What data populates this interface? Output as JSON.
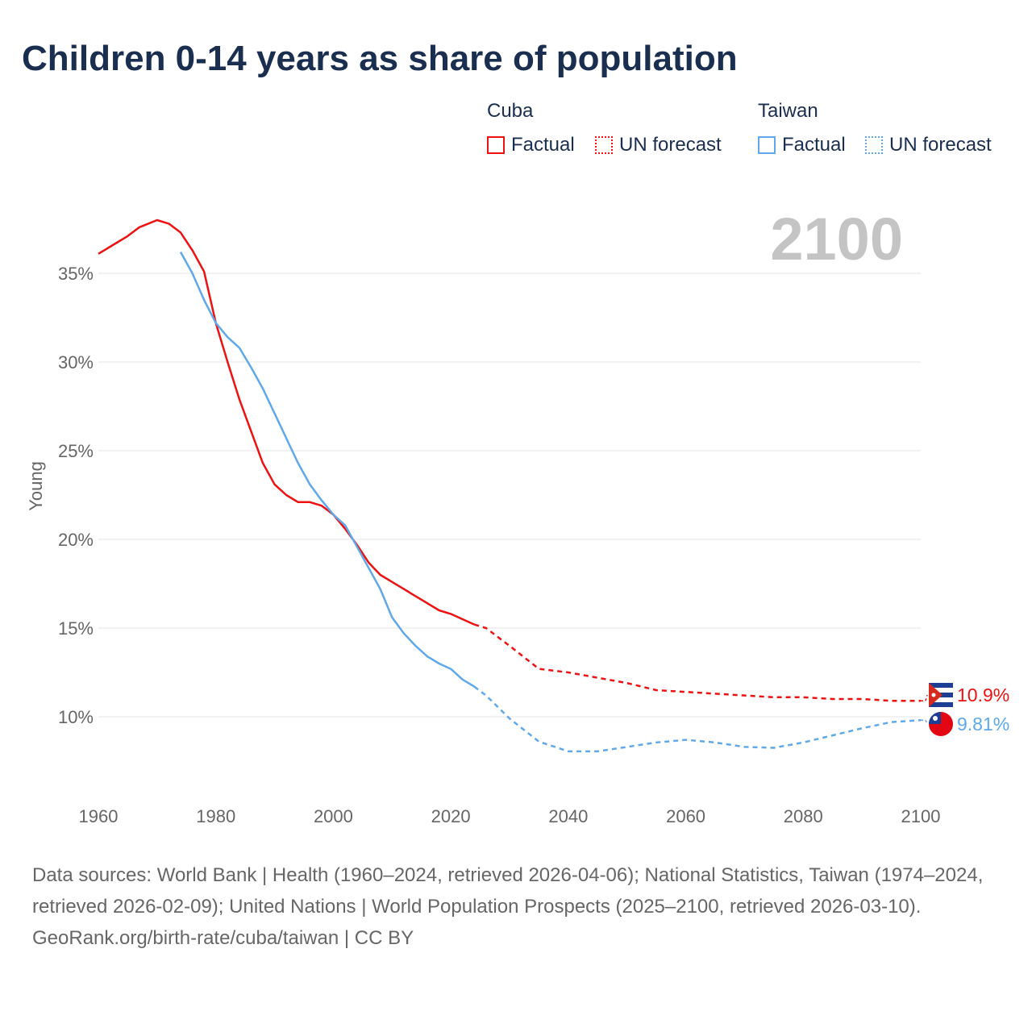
{
  "title": "Children 0-14 years as share of population",
  "legend": {
    "groups": [
      {
        "country": "Cuba",
        "factual": "Factual",
        "forecast": "UN forecast",
        "color": "#ee1111"
      },
      {
        "country": "Taiwan",
        "factual": "Factual",
        "forecast": "UN forecast",
        "color": "#5fa8ea"
      }
    ]
  },
  "year_label": "2100",
  "footer": {
    "sources": "Data sources: World Bank | Health (1960–2024, retrieved 2026-04-06); National Statistics, Taiwan (1974–2024, retrieved 2026-02-09); United Nations | World Population Prospects (2025–2100, retrieved 2026-03-10).",
    "credit": "GeoRank.org/birth-rate/cuba/taiwan | CC BY"
  },
  "chart_data": {
    "type": "line",
    "title": "Children 0-14 years as share of population",
    "xlabel": "",
    "ylabel": "Young",
    "xlim": [
      1960,
      2100
    ],
    "ylim": [
      6,
      39
    ],
    "x_ticks": [
      "1960",
      "1980",
      "2000",
      "2020",
      "2040",
      "2060",
      "2080",
      "2100"
    ],
    "y_ticks": [
      {
        "v": 10,
        "label": "10%"
      },
      {
        "v": 15,
        "label": "15%"
      },
      {
        "v": 20,
        "label": "20%"
      },
      {
        "v": 25,
        "label": "25%"
      },
      {
        "v": 30,
        "label": "30%"
      },
      {
        "v": 35,
        "label": "35%"
      }
    ],
    "grid": true,
    "series": [
      {
        "name": "Cuba",
        "color": "#ee1111",
        "end_label": "10.9%",
        "factual": [
          [
            1960,
            36.1
          ],
          [
            1962,
            36.5
          ],
          [
            1965,
            37.1
          ],
          [
            1967,
            37.6
          ],
          [
            1970,
            38.0
          ],
          [
            1972,
            37.8
          ],
          [
            1974,
            37.3
          ],
          [
            1976,
            36.3
          ],
          [
            1978,
            35.1
          ],
          [
            1980,
            32.2
          ],
          [
            1982,
            30.0
          ],
          [
            1984,
            27.9
          ],
          [
            1986,
            26.1
          ],
          [
            1988,
            24.3
          ],
          [
            1990,
            23.1
          ],
          [
            1992,
            22.5
          ],
          [
            1994,
            22.1
          ],
          [
            1996,
            22.1
          ],
          [
            1998,
            21.9
          ],
          [
            2000,
            21.4
          ],
          [
            2002,
            20.6
          ],
          [
            2004,
            19.7
          ],
          [
            2006,
            18.7
          ],
          [
            2008,
            18.0
          ],
          [
            2010,
            17.6
          ],
          [
            2012,
            17.2
          ],
          [
            2014,
            16.8
          ],
          [
            2016,
            16.4
          ],
          [
            2018,
            16.0
          ],
          [
            2020,
            15.8
          ],
          [
            2022,
            15.5
          ],
          [
            2024,
            15.2
          ]
        ],
        "forecast": [
          [
            2024,
            15.2
          ],
          [
            2026,
            15.0
          ],
          [
            2030,
            14.0
          ],
          [
            2035,
            12.7
          ],
          [
            2040,
            12.5
          ],
          [
            2045,
            12.2
          ],
          [
            2050,
            11.9
          ],
          [
            2055,
            11.5
          ],
          [
            2060,
            11.4
          ],
          [
            2065,
            11.3
          ],
          [
            2070,
            11.2
          ],
          [
            2075,
            11.1
          ],
          [
            2080,
            11.1
          ],
          [
            2085,
            11.0
          ],
          [
            2090,
            11.0
          ],
          [
            2095,
            10.9
          ],
          [
            2100,
            10.9
          ]
        ]
      },
      {
        "name": "Taiwan",
        "color": "#5fa8ea",
        "end_label": "9.81%",
        "factual": [
          [
            1974,
            36.2
          ],
          [
            1976,
            35.0
          ],
          [
            1978,
            33.5
          ],
          [
            1980,
            32.2
          ],
          [
            1982,
            31.4
          ],
          [
            1984,
            30.8
          ],
          [
            1986,
            29.7
          ],
          [
            1988,
            28.5
          ],
          [
            1990,
            27.1
          ],
          [
            1991,
            26.4
          ],
          [
            1992,
            25.7
          ],
          [
            1994,
            24.3
          ],
          [
            1996,
            23.1
          ],
          [
            1998,
            22.2
          ],
          [
            2000,
            21.4
          ],
          [
            2002,
            20.8
          ],
          [
            2004,
            19.6
          ],
          [
            2006,
            18.4
          ],
          [
            2008,
            17.2
          ],
          [
            2010,
            15.6
          ],
          [
            2012,
            14.7
          ],
          [
            2014,
            14.0
          ],
          [
            2016,
            13.4
          ],
          [
            2018,
            13.0
          ],
          [
            2020,
            12.7
          ],
          [
            2022,
            12.1
          ],
          [
            2024,
            11.7
          ]
        ],
        "forecast": [
          [
            2024,
            11.7
          ],
          [
            2026,
            11.2
          ],
          [
            2030,
            9.9
          ],
          [
            2035,
            8.6
          ],
          [
            2040,
            8.05
          ],
          [
            2045,
            8.05
          ],
          [
            2050,
            8.3
          ],
          [
            2055,
            8.55
          ],
          [
            2060,
            8.7
          ],
          [
            2065,
            8.55
          ],
          [
            2070,
            8.3
          ],
          [
            2075,
            8.25
          ],
          [
            2080,
            8.55
          ],
          [
            2085,
            8.95
          ],
          [
            2090,
            9.35
          ],
          [
            2095,
            9.7
          ],
          [
            2100,
            9.81
          ]
        ]
      }
    ]
  }
}
